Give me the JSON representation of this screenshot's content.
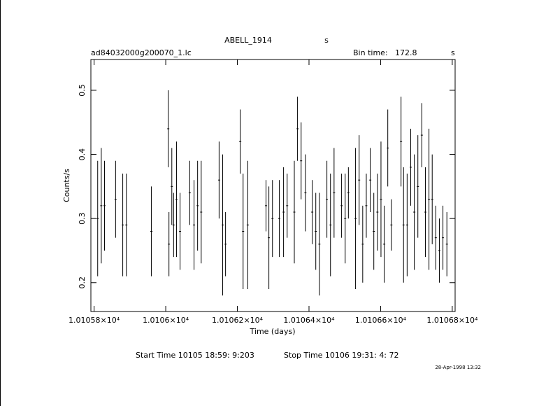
{
  "chart_data": {
    "type": "scatter",
    "title": "ABELL_1914",
    "title_unit": "s",
    "subtitle": "ad84032000g200070_1.lc",
    "bin_label": "Bin time:",
    "bin_value": "172.8",
    "bin_unit": "s",
    "xlabel": "Time (days)",
    "ylabel": "Counts/s",
    "start_time": "Start Time 10105 18:59: 9:203",
    "stop_time": "Stop Time 10106 19:31: 4: 72",
    "date": "28-Apr-1998 13:32",
    "color": "#000000",
    "xlim": [
      10105.791,
      10106.808
    ],
    "ylim": [
      0.155,
      0.548
    ],
    "xticks": [
      {
        "value": 10105.8,
        "label": "1.01058×10⁴"
      },
      {
        "value": 10106.0,
        "label": "1.0106×10⁴"
      },
      {
        "value": 10106.2,
        "label": "1.01062×10⁴"
      },
      {
        "value": 10106.4,
        "label": "1.01064×10⁴"
      },
      {
        "value": 10106.6,
        "label": "1.01066×10⁴"
      },
      {
        "value": 10106.8,
        "label": "1.01068×10⁴"
      }
    ],
    "yticks": [
      0.2,
      0.3,
      0.4,
      0.5
    ],
    "x": [
      10105.81,
      10105.82,
      10105.829,
      10105.86,
      10105.88,
      10105.89,
      10105.96,
      10106.007,
      10106.009,
      10106.017,
      10106.022,
      10106.03,
      10106.04,
      10106.067,
      10106.079,
      10106.089,
      10106.099,
      10106.149,
      10106.159,
      10106.167,
      10106.208,
      10106.216,
      10106.229,
      10106.28,
      10106.288,
      10106.298,
      10106.317,
      10106.329,
      10106.339,
      10106.359,
      10106.368,
      10106.378,
      10106.39,
      10106.409,
      10106.419,
      10106.429,
      10106.45,
      10106.46,
      10106.47,
      10106.491,
      10106.501,
      10106.51,
      10106.53,
      10106.54,
      10106.55,
      10106.56,
      10106.571,
      10106.581,
      10106.591,
      10106.601,
      10106.61,
      10106.62,
      10106.63,
      10106.657,
      10106.664,
      10106.674,
      10106.684,
      10106.694,
      10106.704,
      10106.715,
      10106.725,
      10106.735,
      10106.744,
      10106.754,
      10106.764,
      10106.774,
      10106.785
    ],
    "y": [
      0.3,
      0.32,
      0.32,
      0.33,
      0.29,
      0.29,
      0.28,
      0.44,
      0.26,
      0.35,
      0.29,
      0.33,
      0.28,
      0.34,
      0.29,
      0.32,
      0.31,
      0.36,
      0.29,
      0.26,
      0.42,
      0.28,
      0.29,
      0.32,
      0.27,
      0.3,
      0.3,
      0.31,
      0.32,
      0.31,
      0.44,
      0.39,
      0.34,
      0.31,
      0.28,
      0.26,
      0.33,
      0.29,
      0.34,
      0.32,
      0.3,
      0.34,
      0.3,
      0.36,
      0.26,
      0.32,
      0.36,
      0.28,
      0.31,
      0.33,
      0.26,
      0.41,
      0.29,
      0.42,
      0.29,
      0.29,
      0.38,
      0.31,
      0.35,
      0.43,
      0.31,
      0.33,
      0.33,
      0.27,
      0.25,
      0.27,
      0.26
    ],
    "yerr": [
      0.09,
      0.09,
      0.07,
      0.06,
      0.08,
      0.08,
      0.07,
      0.06,
      0.05,
      0.06,
      0.05,
      0.09,
      0.06,
      0.05,
      0.07,
      0.07,
      0.08,
      0.06,
      0.11,
      0.05,
      0.05,
      0.09,
      0.1,
      0.04,
      0.08,
      0.06,
      0.06,
      0.07,
      0.05,
      0.08,
      0.05,
      0.06,
      0.06,
      0.05,
      0.06,
      0.08,
      0.06,
      0.08,
      0.07,
      0.05,
      0.07,
      0.04,
      0.11,
      0.07,
      0.06,
      0.05,
      0.05,
      0.06,
      0.06,
      0.09,
      0.06,
      0.06,
      0.04,
      0.07,
      0.09,
      0.08,
      0.06,
      0.09,
      0.08,
      0.05,
      0.07,
      0.11,
      0.07,
      0.05,
      0.05,
      0.05,
      0.05
    ]
  }
}
